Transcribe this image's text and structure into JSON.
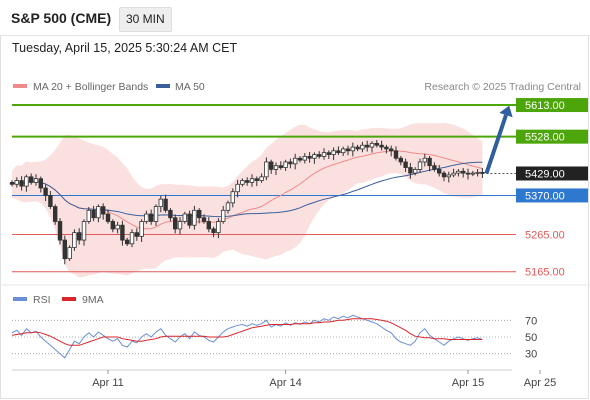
{
  "header": {
    "symbol": "S&P 500 (CME)",
    "interval": "30 MIN",
    "timestamp": "Tuesday, April 15, 2025 5:30:24 AM CET"
  },
  "price_legend": [
    {
      "label": "MA 20 + Bollinger Bands",
      "color": "#f08a8a"
    },
    {
      "label": "MA 50",
      "color": "#3a5f9b"
    }
  ],
  "rsi_legend": [
    {
      "label": "RSI",
      "color": "#6a8fd8"
    },
    {
      "label": "9MA",
      "color": "#d9262b"
    }
  ],
  "credit": "Research © 2025 Trading Central",
  "colors": {
    "up_candle": "#ffffff",
    "down_candle": "#333333",
    "resistance": "#4ca60a",
    "pivot": "#2f78d0",
    "support": "#e05a5a",
    "bollinger_fill": "#f9d5d5",
    "arrow": "#2f5f9e",
    "current_price_tag": "#222222"
  },
  "chart_data": {
    "type": "candlestick",
    "price_axis": {
      "ylim": [
        5140,
        5640
      ]
    },
    "levels": [
      {
        "value": 5613.0,
        "label": "5613.00",
        "kind": "resistance"
      },
      {
        "value": 5528.0,
        "label": "5528.00",
        "kind": "resistance"
      },
      {
        "value": 5429.0,
        "label": "5429.00",
        "kind": "current"
      },
      {
        "value": 5370.0,
        "label": "5370.00",
        "kind": "pivot"
      },
      {
        "value": 5265.0,
        "label": "5265.00",
        "kind": "support"
      },
      {
        "value": 5165.0,
        "label": "5165.00",
        "kind": "support"
      }
    ],
    "x_labels": [
      {
        "label": "Apr 11",
        "index": 20
      },
      {
        "label": "Apr 14",
        "index": 57
      },
      {
        "label": "Apr 15",
        "index": 95
      },
      {
        "label": "Apr 25",
        "index": 110
      }
    ],
    "closes": [
      5400,
      5410,
      5395,
      5420,
      5405,
      5415,
      5390,
      5370,
      5340,
      5300,
      5250,
      5200,
      5230,
      5270,
      5250,
      5300,
      5330,
      5310,
      5340,
      5320,
      5300,
      5280,
      5290,
      5250,
      5240,
      5270,
      5260,
      5300,
      5320,
      5300,
      5340,
      5360,
      5330,
      5310,
      5280,
      5300,
      5320,
      5290,
      5330,
      5310,
      5300,
      5280,
      5270,
      5300,
      5330,
      5350,
      5380,
      5400,
      5410,
      5405,
      5415,
      5410,
      5420,
      5460,
      5440,
      5450,
      5445,
      5460,
      5455,
      5470,
      5465,
      5475,
      5470,
      5480,
      5475,
      5485,
      5480,
      5490,
      5485,
      5495,
      5490,
      5500,
      5495,
      5505,
      5500,
      5510,
      5505,
      5500,
      5495,
      5490,
      5470,
      5460,
      5445,
      5430,
      5440,
      5460,
      5470,
      5450,
      5440,
      5430,
      5420,
      5425,
      5430,
      5435,
      5430,
      5428,
      5430,
      5432,
      5429
    ],
    "rsi_axis": {
      "ticks": [
        70,
        50,
        30
      ],
      "ylim": [
        20,
        80
      ]
    },
    "rsi": [
      55,
      58,
      52,
      60,
      55,
      57,
      50,
      45,
      40,
      35,
      30,
      25,
      35,
      45,
      42,
      50,
      55,
      50,
      56,
      52,
      48,
      45,
      48,
      40,
      38,
      45,
      43,
      50,
      54,
      50,
      56,
      60,
      52,
      48,
      44,
      50,
      54,
      48,
      56,
      52,
      50,
      46,
      44,
      50,
      56,
      60,
      62,
      64,
      65,
      63,
      66,
      64,
      66,
      70,
      62,
      65,
      63,
      67,
      64,
      67,
      65,
      68,
      66,
      70,
      68,
      72,
      70,
      74,
      72,
      75,
      73,
      76,
      74,
      72,
      70,
      68,
      66,
      62,
      58,
      55,
      48,
      44,
      42,
      40,
      45,
      55,
      60,
      52,
      48,
      44,
      40,
      45,
      48,
      50,
      48,
      46,
      48,
      49,
      47
    ],
    "rsi_ma": [
      52,
      53,
      54,
      55,
      55,
      56,
      55,
      53,
      51,
      48,
      45,
      42,
      40,
      40,
      40,
      42,
      44,
      46,
      48,
      50,
      50,
      50,
      50,
      48,
      47,
      46,
      45,
      45,
      46,
      47,
      48,
      50,
      51,
      51,
      51,
      51,
      51,
      51,
      51,
      51,
      51,
      50,
      50,
      50,
      50,
      51,
      53,
      55,
      57,
      59,
      61,
      62,
      63,
      64,
      65,
      65,
      65,
      65,
      65,
      66,
      66,
      66,
      66,
      67,
      67,
      68,
      68,
      69,
      70,
      70,
      71,
      72,
      72,
      72,
      72,
      72,
      71,
      70,
      69,
      67,
      64,
      61,
      58,
      54,
      51,
      50,
      49,
      49,
      48,
      48,
      48,
      47,
      47,
      47,
      47,
      47,
      47,
      47,
      47
    ]
  }
}
